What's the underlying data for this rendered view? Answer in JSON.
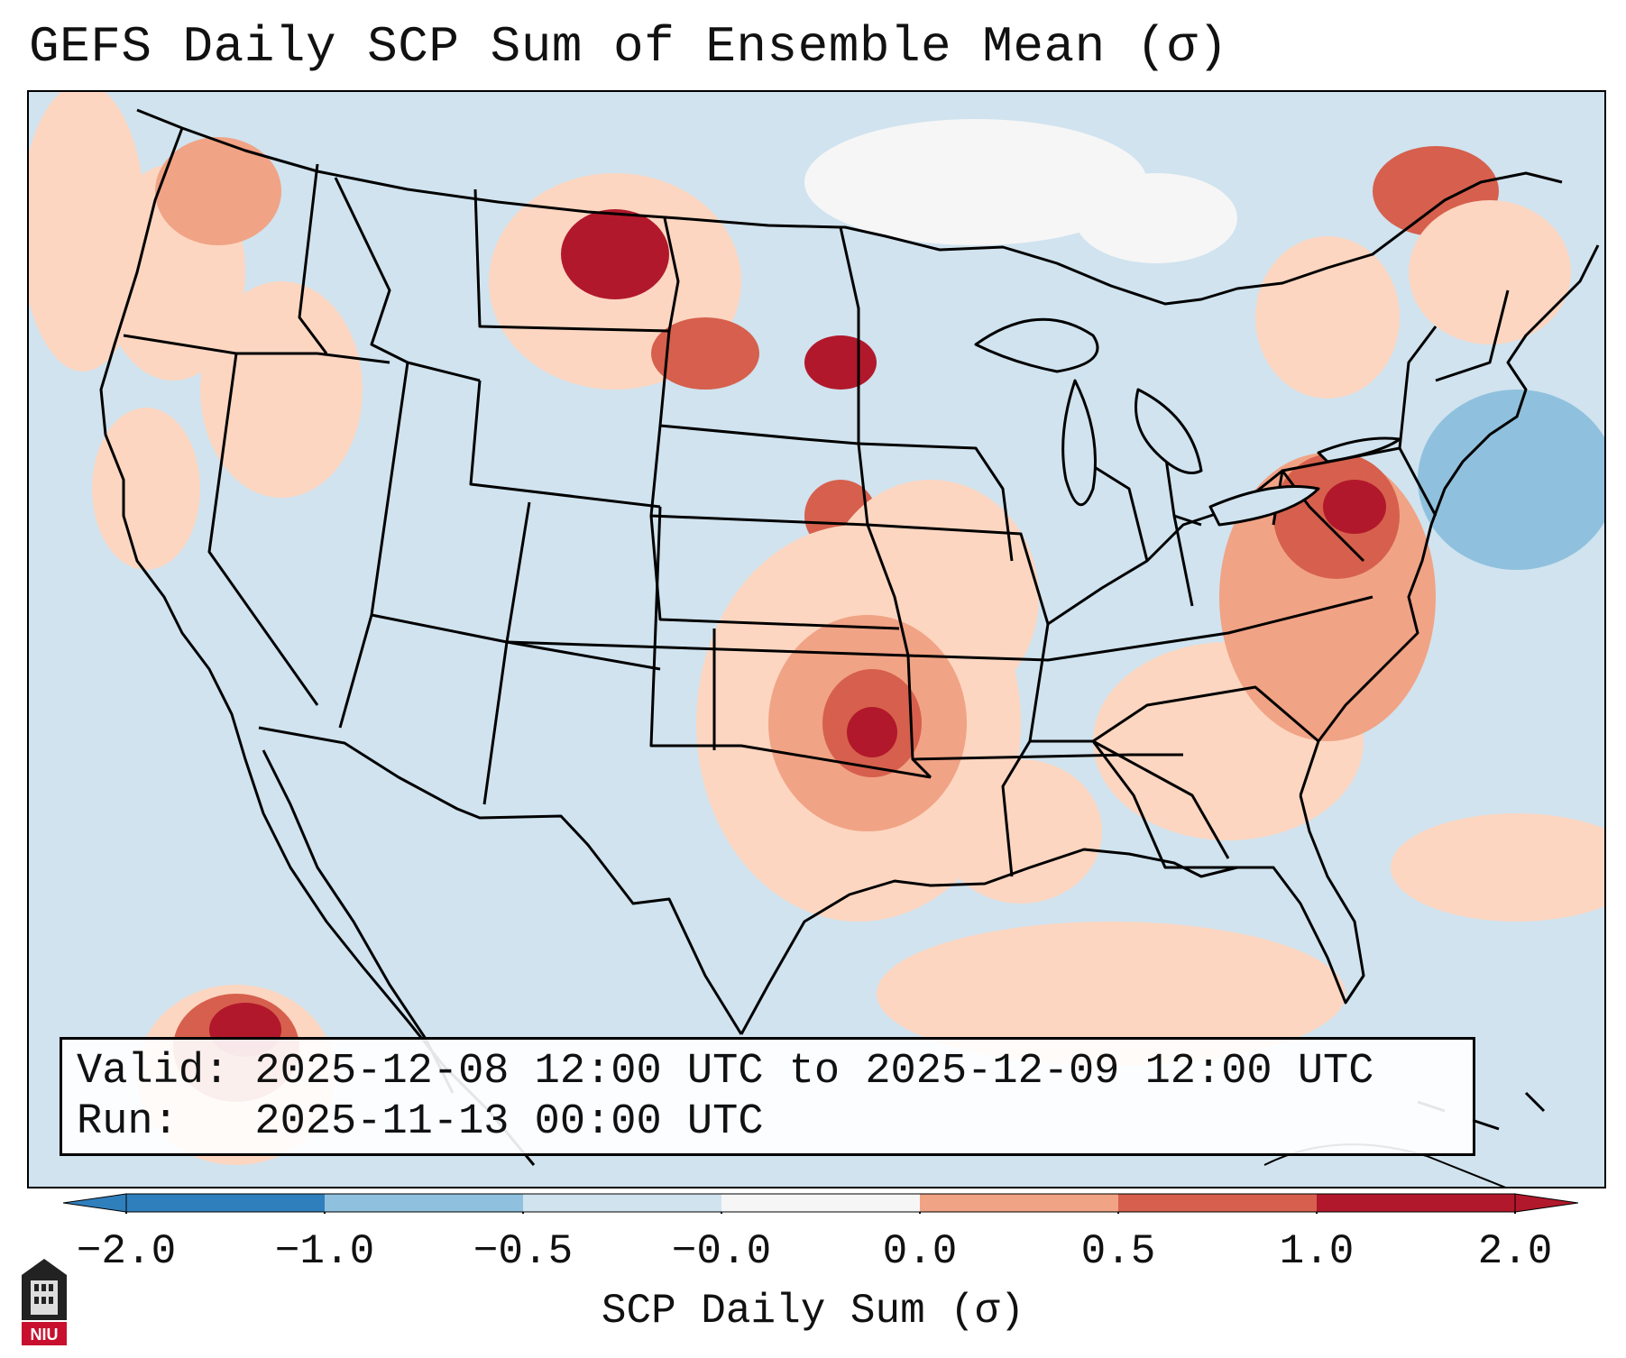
{
  "title": "GEFS Daily SCP Sum of Ensemble Mean (σ)",
  "info": {
    "valid_line": "Valid: 2025-12-08 12:00 UTC to 2025-12-09 12:00 UTC",
    "run_line": "Run:   2025-11-13 00:00 UTC"
  },
  "colorbar": {
    "label": "SCP Daily Sum (σ)",
    "ticks": [
      "−2.0",
      "−1.0",
      "−0.5",
      "−0.0",
      "0.0",
      "0.5",
      "1.0",
      "2.0"
    ],
    "colors": [
      "#2f7fbc",
      "#8fc1de",
      "#d0e3ef",
      "#f6f6f6",
      "#fcd6c1",
      "#f1a385",
      "#d6604d",
      "#b2182b"
    ]
  },
  "logo": {
    "text": "NIU"
  },
  "colors": {
    "background_field": "#d0e3ef",
    "light_positive": "#fcd6c1",
    "moderate_positive": "#f1a385",
    "high_positive": "#d6604d",
    "max_positive": "#b2182b",
    "neutral_white": "#f6f6f6",
    "negative": "#8fc1de"
  }
}
